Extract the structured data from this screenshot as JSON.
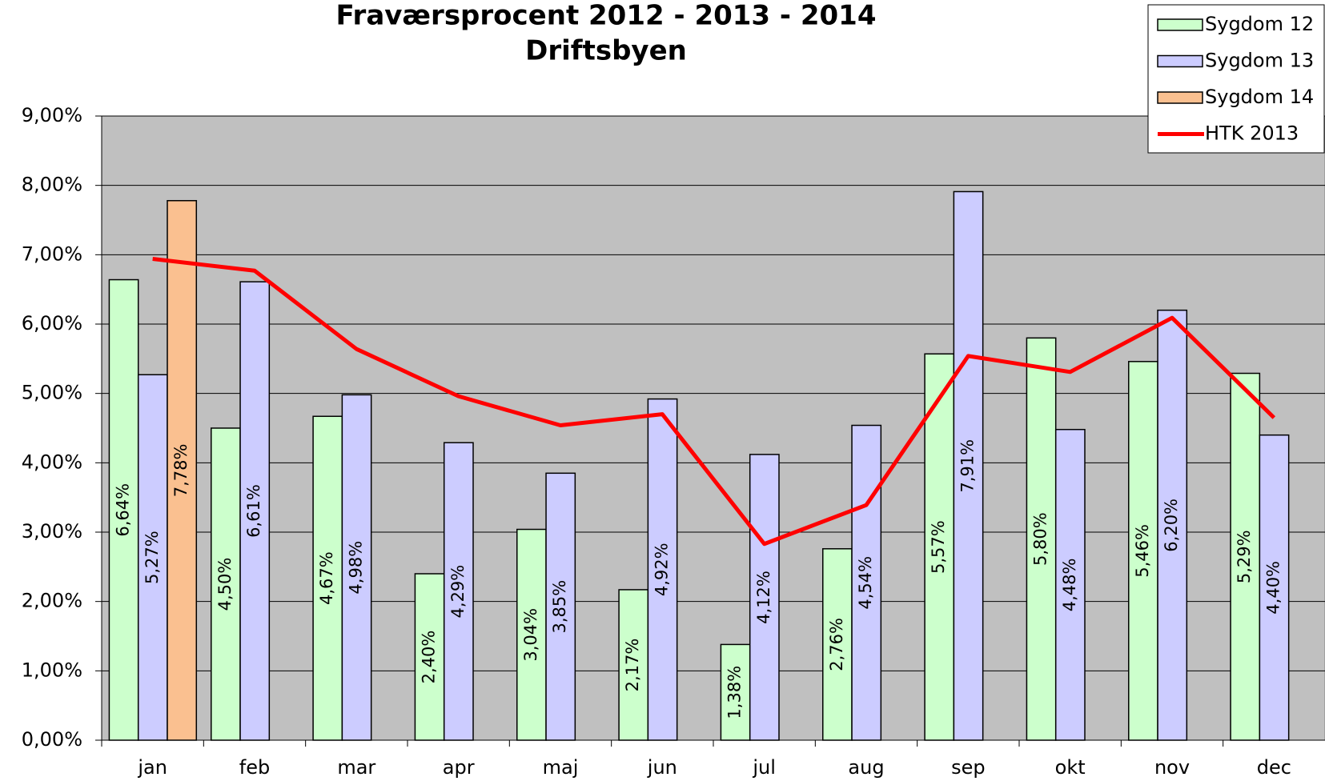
{
  "chart_data": {
    "type": "bar",
    "title": "Fraværsprocent 2012 - 2013 - 2014",
    "subtitle": "Driftsbyen",
    "categories": [
      "jan",
      "feb",
      "mar",
      "apr",
      "maj",
      "jun",
      "jul",
      "aug",
      "sep",
      "okt",
      "nov",
      "dec"
    ],
    "series": [
      {
        "name": "Sygdom 12",
        "type": "bar",
        "color": "#ccffcc",
        "values": [
          6.64,
          4.5,
          4.67,
          2.4,
          3.04,
          2.17,
          1.38,
          2.76,
          5.57,
          5.8,
          5.46,
          5.29
        ],
        "value_labels": [
          "6,64%",
          "4,50%",
          "4,67%",
          "2,40%",
          "3,04%",
          "2,17%",
          "1,38%",
          "2,76%",
          "5,57%",
          "5,80%",
          "5,46%",
          "5,29%"
        ]
      },
      {
        "name": "Sygdom 13",
        "type": "bar",
        "color": "#ccccff",
        "values": [
          5.27,
          6.61,
          4.98,
          4.29,
          3.85,
          4.92,
          4.12,
          4.54,
          7.91,
          4.48,
          6.2,
          4.4
        ],
        "value_labels": [
          "5,27%",
          "6,61%",
          "4,98%",
          "4,29%",
          "3,85%",
          "4,92%",
          "4,12%",
          "4,54%",
          "7,91%",
          "4,48%",
          "6,20%",
          "4,40%"
        ]
      },
      {
        "name": "Sygdom 14",
        "type": "bar",
        "color": "#fac090",
        "values": [
          7.78,
          null,
          null,
          null,
          null,
          null,
          null,
          null,
          null,
          null,
          null,
          null
        ],
        "value_labels": [
          "7,78%",
          null,
          null,
          null,
          null,
          null,
          null,
          null,
          null,
          null,
          null,
          null
        ]
      },
      {
        "name": "HTK 2013",
        "type": "line",
        "color": "#ff0000",
        "values": [
          6.94,
          6.77,
          5.64,
          4.96,
          4.54,
          4.7,
          2.83,
          3.39,
          5.54,
          5.31,
          6.09,
          4.65
        ]
      }
    ],
    "ylim": [
      0,
      9
    ],
    "yticks": [
      {
        "value": 0,
        "label": "0,00%"
      },
      {
        "value": 1,
        "label": "1,00%"
      },
      {
        "value": 2,
        "label": "2,00%"
      },
      {
        "value": 3,
        "label": "3,00%"
      },
      {
        "value": 4,
        "label": "4,00%"
      },
      {
        "value": 5,
        "label": "5,00%"
      },
      {
        "value": 6,
        "label": "6,00%"
      },
      {
        "value": 7,
        "label": "7,00%"
      },
      {
        "value": 8,
        "label": "8,00%"
      },
      {
        "value": 9,
        "label": "9,00%"
      }
    ],
    "grid": true,
    "legend": "top-right"
  }
}
